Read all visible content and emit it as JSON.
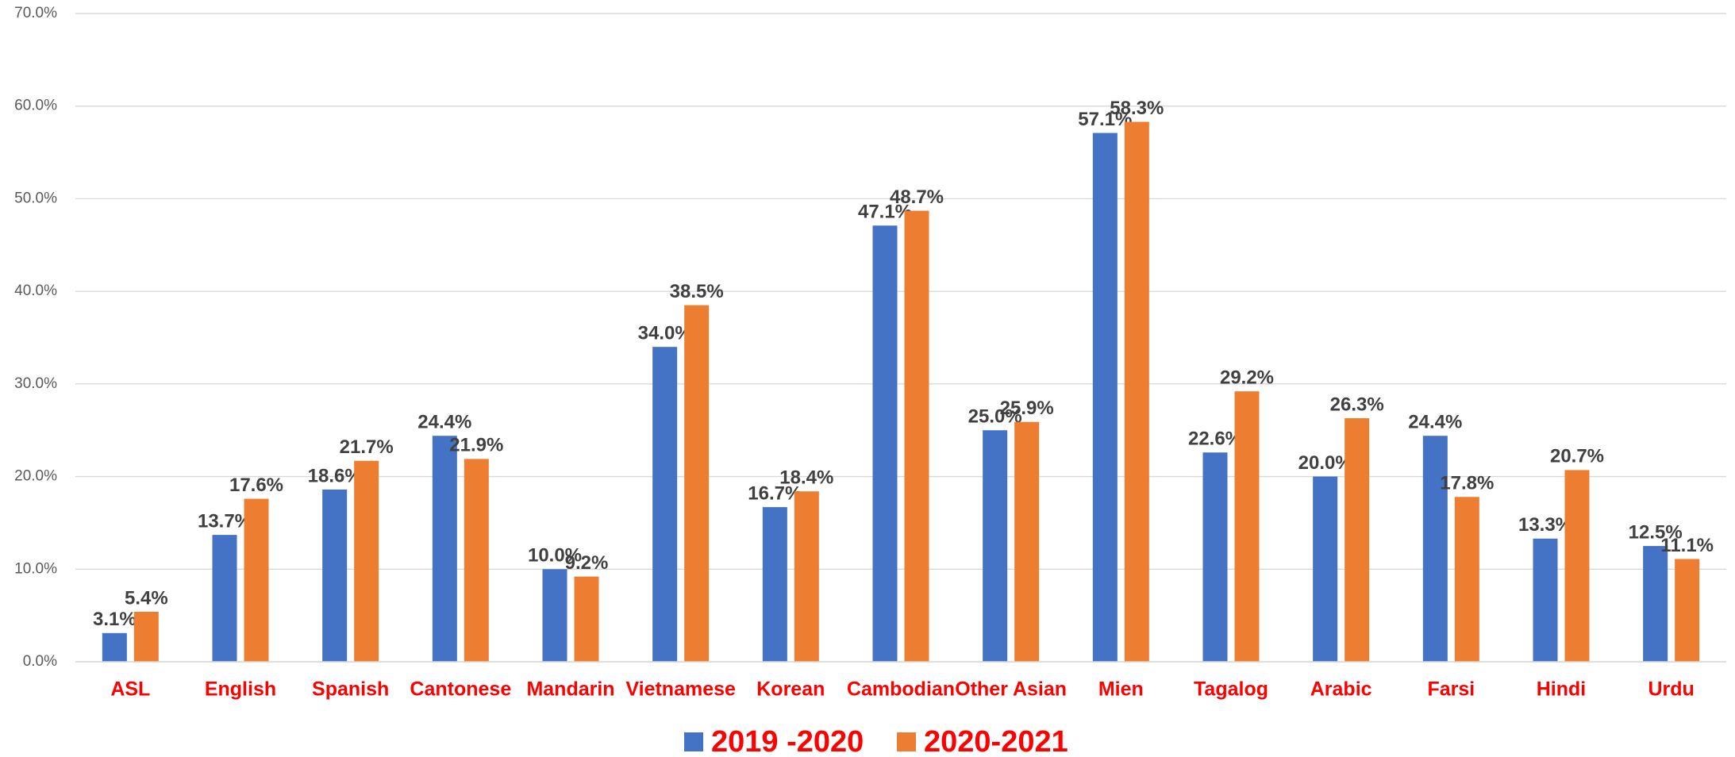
{
  "chart_data": {
    "type": "bar",
    "categories": [
      "ASL",
      "English",
      "Spanish",
      "Cantonese",
      "Mandarin",
      "Vietnamese",
      "Korean",
      "Cambodian",
      "Other Asian",
      "Mien",
      "Tagalog",
      "Arabic",
      "Farsi",
      "Hindi",
      "Urdu"
    ],
    "series": [
      {
        "name": "2019 -2020",
        "color": "#4472c4",
        "values": [
          3.1,
          13.7,
          18.6,
          24.4,
          10.0,
          34.0,
          16.7,
          47.1,
          25.0,
          57.1,
          22.6,
          20.0,
          24.4,
          13.3,
          12.5
        ],
        "value_labels": [
          "3.1%",
          "13.7%",
          "18.6%",
          "24.4%",
          "10.0%",
          "34.0%",
          "16.7%",
          "47.1%",
          "25.0%",
          "57.1%",
          "22.6%",
          "20.0%",
          "24.4%",
          "13.3%",
          "12.5%"
        ]
      },
      {
        "name": "2020-2021",
        "color": "#ed7d31",
        "values": [
          5.4,
          17.6,
          21.7,
          21.9,
          9.2,
          38.5,
          18.4,
          48.7,
          25.9,
          58.3,
          29.2,
          26.3,
          17.8,
          20.7,
          11.1
        ],
        "value_labels": [
          "5.4%",
          "17.6%",
          "21.7%",
          "21.9%",
          "9.2%",
          "38.5%",
          "18.4%",
          "48.7%",
          "25.9%",
          "58.3%",
          "29.2%",
          "26.3%",
          "17.8%",
          "20.7%",
          "11.1%"
        ]
      }
    ],
    "ylim": [
      0,
      70
    ],
    "yticks": [
      {
        "value": 0,
        "label": "0.0%"
      },
      {
        "value": 10,
        "label": "10.0%"
      },
      {
        "value": 20,
        "label": "20.0%"
      },
      {
        "value": 30,
        "label": "30.0%"
      },
      {
        "value": 40,
        "label": "40.0%"
      },
      {
        "value": 50,
        "label": "50.0%"
      },
      {
        "value": 60,
        "label": "60.0%"
      },
      {
        "value": 70,
        "label": "70.0%"
      }
    ],
    "grid": true,
    "legend": "bottom"
  }
}
